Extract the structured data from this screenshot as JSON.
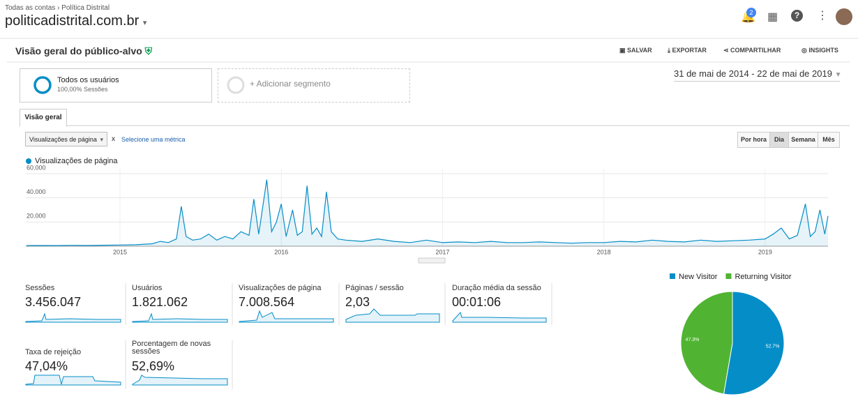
{
  "header": {
    "breadcrumb": [
      "Todas as contas",
      "Política Distrital"
    ],
    "property": "politicadistrital.com.br",
    "notifications": 2
  },
  "toolbar": {
    "title": "Visão geral do público-alvo",
    "actions": [
      "SALVAR",
      "EXPORTAR",
      "COMPARTILHAR",
      "INSIGHTS"
    ]
  },
  "segments": {
    "active": {
      "name": "Todos os usuários",
      "detail": "100,00% Sessões"
    },
    "add": "+ Adicionar segmento"
  },
  "date_range": "31 de mai de 2014 - 22 de mai de 2019",
  "tab": "Visão geral",
  "metric_selector": {
    "selected": "Visualizações de página",
    "remove": "x",
    "other": "Selecione uma métrica"
  },
  "granularity": [
    "Por hora",
    "Dia",
    "Semana",
    "Mês"
  ],
  "chart_data": [
    {
      "type": "line",
      "series": [
        {
          "name": "Visualizações de página",
          "color": "#058dc7",
          "values": [
            500,
            600,
            500,
            700,
            600,
            800,
            1000,
            1200,
            2000,
            4000,
            3000,
            6000,
            33000,
            8000,
            5000,
            6000,
            10000,
            5000,
            8000,
            6000,
            12000,
            9000,
            39000,
            10000,
            55000,
            12000,
            20000,
            35000,
            8000,
            30000,
            9000,
            12000,
            50000,
            10000,
            15000,
            8000,
            45000,
            12000,
            6000,
            5000,
            4000,
            6000,
            4000,
            3000,
            5000,
            3000,
            3500,
            3000,
            4000,
            3000,
            3000,
            3500,
            3000,
            2500,
            3000,
            3000,
            4000,
            3500,
            5000,
            4000,
            3500,
            5000,
            4000,
            4500,
            5000,
            6000,
            10000,
            15000,
            6000,
            9000,
            35000,
            8000,
            12000,
            30000,
            10000,
            25000
          ]
        }
      ],
      "x": [
        2014.42,
        2014.5,
        2014.6,
        2014.7,
        2014.8,
        2014.9,
        2015.0,
        2015.1,
        2015.2,
        2015.25,
        2015.3,
        2015.35,
        2015.38,
        2015.41,
        2015.45,
        2015.5,
        2015.55,
        2015.6,
        2015.65,
        2015.7,
        2015.75,
        2015.8,
        2015.83,
        2015.86,
        2015.91,
        2015.94,
        2015.97,
        2016.0,
        2016.03,
        2016.07,
        2016.1,
        2016.13,
        2016.16,
        2016.19,
        2016.22,
        2016.25,
        2016.28,
        2016.31,
        2016.35,
        2016.4,
        2016.5,
        2016.6,
        2016.7,
        2016.8,
        2016.9,
        2017.0,
        2017.1,
        2017.2,
        2017.3,
        2017.4,
        2017.5,
        2017.6,
        2017.7,
        2017.8,
        2017.9,
        2018.0,
        2018.1,
        2018.2,
        2018.3,
        2018.4,
        2018.5,
        2018.6,
        2018.7,
        2018.8,
        2018.9,
        2019.0,
        2019.05,
        2019.1,
        2019.15,
        2019.2,
        2019.25,
        2019.28,
        2019.31,
        2019.34,
        2019.37,
        2019.39
      ],
      "xlim": [
        2014.416,
        2019.39
      ],
      "xticks": [
        2015,
        2016,
        2017,
        2018,
        2019
      ],
      "ylim": [
        0,
        64000
      ],
      "yticks": [
        {
          "value": 20000,
          "label": "20.000"
        },
        {
          "value": 40000,
          "label": "40.000"
        },
        {
          "value": 60000,
          "label": "60.000"
        }
      ],
      "grid": true
    },
    {
      "type": "pie",
      "categories": [
        "New Visitor",
        "Returning Visitor"
      ],
      "values": [
        52.7,
        47.3
      ],
      "value_labels": [
        "52.7%",
        "47.3%"
      ],
      "colors": [
        "#058dc7",
        "#50b432"
      ],
      "legend": "top"
    }
  ],
  "metrics": [
    {
      "label": "Sessões",
      "value": "3.456.047"
    },
    {
      "label": "Usuários",
      "value": "1.821.062"
    },
    {
      "label": "Visualizações de página",
      "value": "7.008.564"
    },
    {
      "label": "Páginas / sessão",
      "value": "2,03"
    },
    {
      "label": "Duração média da sessão",
      "value": "00:01:06"
    },
    {
      "label": "Taxa de rejeição",
      "value": "47,04%"
    },
    {
      "label": "Porcentagem de novas sessões",
      "value": "52,69%"
    }
  ]
}
